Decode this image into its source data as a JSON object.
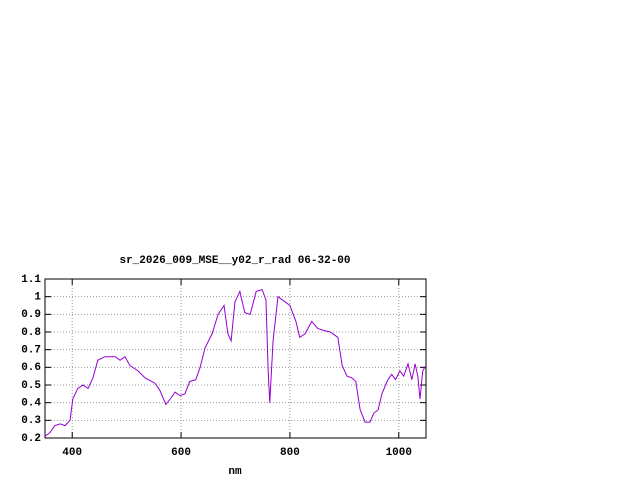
{
  "chart_data": {
    "type": "line",
    "title": "sr_2026_009_MSE__y02_r_rad 06-32-00",
    "x_label": "nm",
    "x": [
      350,
      359,
      368,
      378,
      387,
      396,
      401,
      410,
      420,
      429,
      438,
      447,
      460,
      479,
      488,
      497,
      506,
      521,
      534,
      552,
      561,
      572,
      580,
      589,
      598,
      607,
      616,
      627,
      635,
      644,
      657,
      668,
      679,
      686,
      692,
      699,
      708,
      717,
      727,
      738,
      749,
      756,
      760,
      763,
      769,
      778,
      787,
      800,
      811,
      818,
      828,
      840,
      851,
      861,
      874,
      888,
      896,
      905,
      914,
      921,
      929,
      938,
      947,
      954,
      962,
      969,
      980,
      987,
      994,
      1002,
      1009,
      1017,
      1024,
      1030,
      1035,
      1039,
      1044,
      1050
    ],
    "values": [
      0.21,
      0.23,
      0.27,
      0.28,
      0.27,
      0.3,
      0.42,
      0.48,
      0.5,
      0.48,
      0.54,
      0.64,
      0.66,
      0.66,
      0.64,
      0.66,
      0.61,
      0.58,
      0.54,
      0.51,
      0.47,
      0.39,
      0.42,
      0.46,
      0.44,
      0.45,
      0.52,
      0.53,
      0.6,
      0.71,
      0.79,
      0.9,
      0.95,
      0.79,
      0.75,
      0.97,
      1.03,
      0.91,
      0.9,
      1.03,
      1.04,
      0.98,
      0.58,
      0.4,
      0.75,
      1.0,
      0.98,
      0.95,
      0.86,
      0.77,
      0.79,
      0.86,
      0.82,
      0.81,
      0.8,
      0.77,
      0.61,
      0.55,
      0.54,
      0.52,
      0.36,
      0.29,
      0.29,
      0.34,
      0.36,
      0.45,
      0.53,
      0.56,
      0.53,
      0.58,
      0.55,
      0.62,
      0.53,
      0.62,
      0.55,
      0.42,
      0.58,
      0.61
    ],
    "color": "#9400d3",
    "xlim": [
      350,
      1050
    ],
    "xticks": [
      400,
      600,
      800,
      1000
    ],
    "ylim": [
      0.2,
      1.1
    ],
    "yticks": [
      0.2,
      0.3,
      0.4,
      0.5,
      0.6,
      0.7,
      0.8,
      0.9,
      1,
      1.1
    ],
    "grid": true
  }
}
